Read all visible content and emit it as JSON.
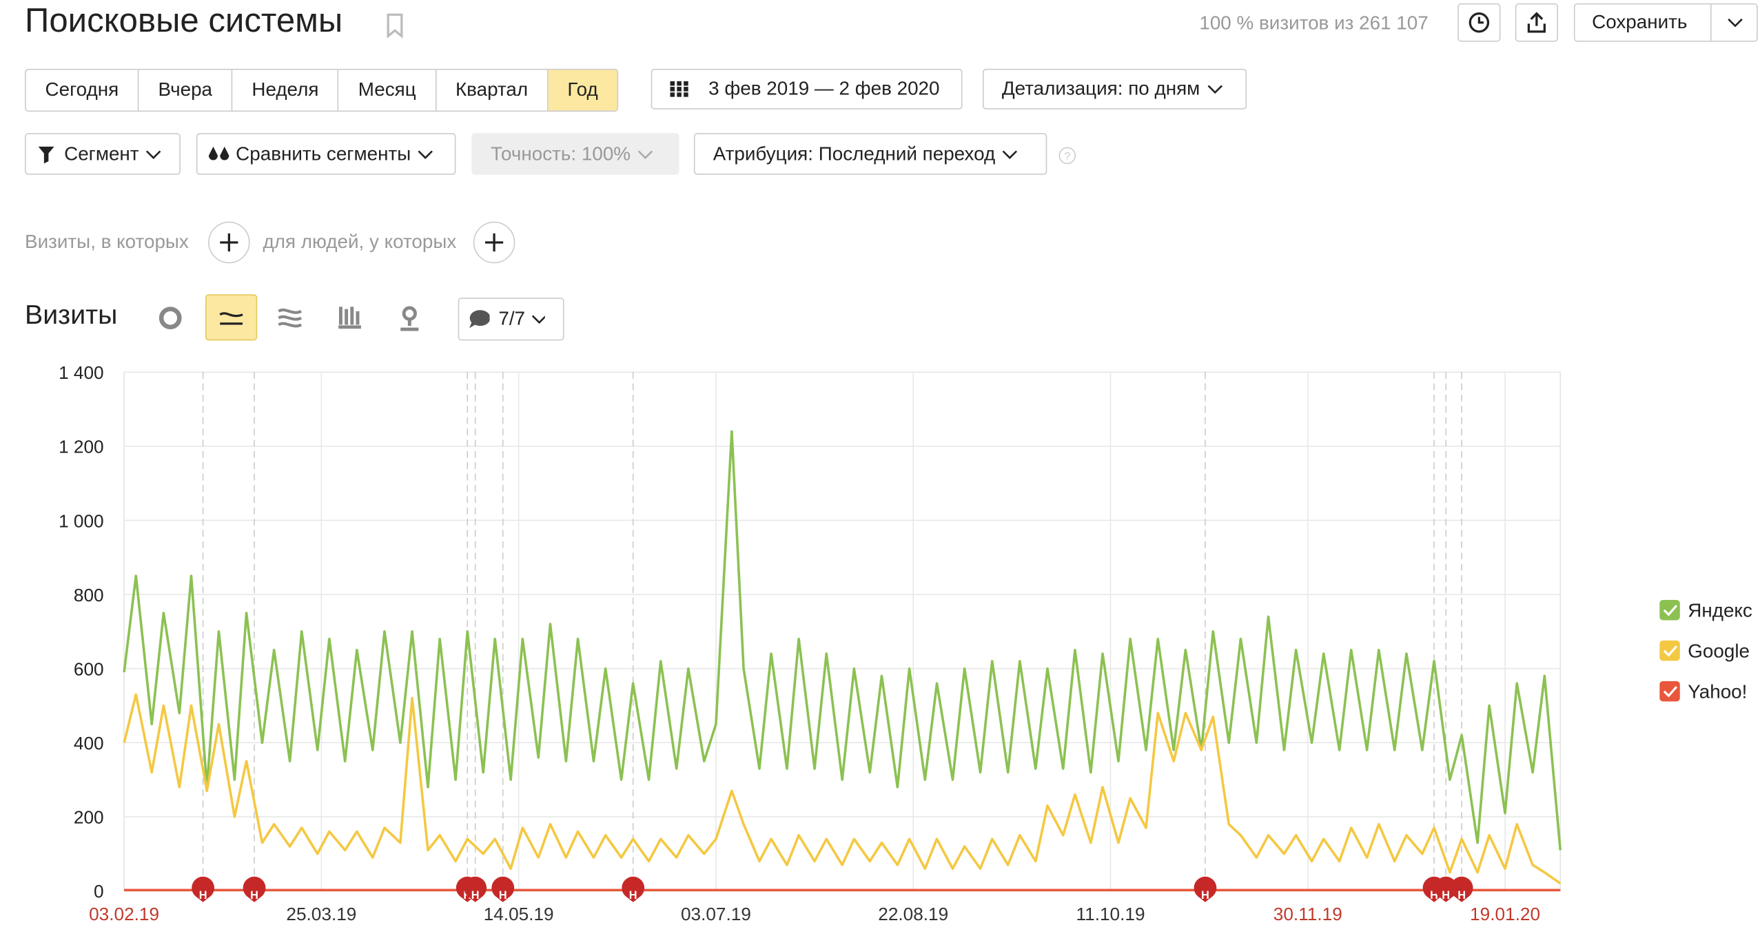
{
  "header": {
    "title": "Поисковые системы",
    "visits_info": "100 % визитов из 261 107",
    "save": "Сохранить"
  },
  "periods": [
    "Сегодня",
    "Вчера",
    "Неделя",
    "Месяц",
    "Квартал",
    "Год"
  ],
  "active_period": 5,
  "date_range": "3 фев 2019 — 2 фев 2020",
  "detail": "Детализация: по дням",
  "filters": [
    "Сегмент",
    "Сравнить сегменты",
    "Точность: 100%",
    "Атрибуция: Последний переход"
  ],
  "conditions": [
    "Визиты, в которых",
    "для людей, у которых"
  ],
  "chart_header": {
    "title": "Визиты",
    "notes_count": "7/7"
  },
  "chart_data": {
    "type": "line",
    "x": [
      "03.02.19",
      "06.02.19",
      "10.02.19",
      "13.02.19",
      "17.02.19",
      "20.02.19",
      "24.02.19",
      "27.02.19",
      "03.03.19",
      "06.03.19",
      "10.03.19",
      "13.03.19",
      "17.03.19",
      "20.03.19",
      "24.03.19",
      "27.03.19",
      "31.03.19",
      "03.04.19",
      "07.04.19",
      "10.04.19",
      "14.04.19",
      "17.04.19",
      "21.04.19",
      "24.04.19",
      "28.04.19",
      "01.05.19",
      "05.05.19",
      "08.05.19",
      "12.05.19",
      "15.05.19",
      "19.05.19",
      "22.05.19",
      "26.05.19",
      "29.05.19",
      "02.06.19",
      "05.06.19",
      "09.06.19",
      "12.06.19",
      "16.06.19",
      "19.06.19",
      "23.06.19",
      "26.06.19",
      "30.06.19",
      "03.07.19",
      "07.07.19",
      "10.07.19",
      "14.07.19",
      "17.07.19",
      "21.07.19",
      "24.07.19",
      "28.07.19",
      "31.07.19",
      "04.08.19",
      "07.08.19",
      "11.08.19",
      "14.08.19",
      "18.08.19",
      "21.08.19",
      "25.08.19",
      "28.08.19",
      "01.09.19",
      "04.09.19",
      "08.09.19",
      "11.09.19",
      "15.09.19",
      "18.09.19",
      "22.09.19",
      "25.09.19",
      "29.09.19",
      "02.10.19",
      "06.10.19",
      "09.10.19",
      "13.10.19",
      "16.10.19",
      "20.10.19",
      "23.10.19",
      "27.10.19",
      "30.10.19",
      "03.11.19",
      "06.11.19",
      "10.11.19",
      "13.11.19",
      "17.11.19",
      "20.11.19",
      "24.11.19",
      "27.11.19",
      "01.12.19",
      "04.12.19",
      "08.12.19",
      "11.12.19",
      "15.12.19",
      "18.12.19",
      "22.12.19",
      "25.12.19",
      "29.12.19",
      "01.01.20",
      "05.01.20",
      "08.01.20",
      "12.01.20",
      "15.01.20",
      "19.01.20",
      "22.01.20",
      "26.01.20",
      "29.01.20",
      "02.02.20"
    ],
    "series": [
      {
        "name": "Яндекс",
        "color": "#8cc152",
        "values": [
          590,
          850,
          450,
          750,
          480,
          850,
          280,
          700,
          300,
          750,
          400,
          650,
          350,
          700,
          380,
          680,
          350,
          650,
          380,
          700,
          400,
          700,
          280,
          680,
          300,
          700,
          320,
          680,
          300,
          680,
          360,
          720,
          350,
          680,
          350,
          600,
          300,
          560,
          300,
          620,
          330,
          600,
          350,
          450,
          1240,
          600,
          330,
          640,
          330,
          680,
          330,
          640,
          300,
          600,
          320,
          580,
          280,
          600,
          300,
          560,
          300,
          600,
          320,
          620,
          320,
          620,
          330,
          600,
          330,
          650,
          320,
          640,
          350,
          680,
          380,
          680,
          380,
          650,
          380,
          700,
          400,
          680,
          400,
          740,
          380,
          650,
          400,
          640,
          380,
          650,
          380,
          650,
          380,
          640,
          380,
          620,
          300,
          420,
          130,
          500,
          210,
          560,
          320,
          580,
          110
        ]
      },
      {
        "name": "Google",
        "color": "#f4c842",
        "values": [
          400,
          530,
          320,
          500,
          280,
          500,
          270,
          450,
          200,
          350,
          130,
          180,
          120,
          170,
          100,
          160,
          110,
          160,
          90,
          170,
          130,
          520,
          110,
          150,
          80,
          140,
          100,
          140,
          60,
          170,
          90,
          180,
          90,
          160,
          90,
          150,
          90,
          140,
          80,
          140,
          90,
          150,
          100,
          140,
          270,
          180,
          80,
          140,
          70,
          150,
          80,
          140,
          70,
          140,
          80,
          130,
          70,
          140,
          60,
          140,
          60,
          120,
          60,
          140,
          70,
          150,
          80,
          230,
          150,
          260,
          130,
          280,
          130,
          250,
          170,
          480,
          350,
          480,
          380,
          470,
          180,
          150,
          90,
          150,
          100,
          150,
          80,
          140,
          80,
          170,
          90,
          180,
          80,
          150,
          100,
          170,
          50,
          140,
          50,
          150,
          60,
          180,
          70,
          50,
          20
        ]
      },
      {
        "name": "Yahoo!",
        "color": "#e8573c",
        "values": [
          2,
          2,
          2,
          2,
          2,
          2,
          2,
          2,
          2,
          2,
          2,
          2,
          2,
          2,
          2,
          2,
          2,
          2,
          2,
          2,
          2,
          2,
          2,
          2,
          2,
          2,
          2,
          2,
          2,
          2,
          2,
          2,
          2,
          2,
          2,
          2,
          2,
          2,
          2,
          2,
          2,
          2,
          2,
          2,
          2,
          2,
          2,
          2,
          2,
          2,
          2,
          2,
          2,
          2,
          2,
          2,
          2,
          2,
          2,
          2,
          2,
          2,
          2,
          2,
          2,
          2,
          2,
          2,
          2,
          2,
          2,
          2,
          2,
          2,
          2,
          2,
          2,
          2,
          2,
          2,
          2,
          2,
          2,
          2,
          2,
          2,
          2,
          2,
          2,
          2,
          2,
          2,
          2,
          2,
          2,
          2,
          2,
          2,
          2,
          2,
          2,
          2,
          2,
          2,
          2
        ]
      }
    ],
    "xlim": [
      "03.02.19",
      "02.02.20"
    ],
    "xticks": [
      "03.02.19",
      "25.03.19",
      "14.05.19",
      "03.07.19",
      "22.08.19",
      "11.10.19",
      "30.11.19",
      "19.01.20"
    ],
    "xtick_colors": [
      "#c0392b",
      "#333333",
      "#333333",
      "#333333",
      "#333333",
      "#333333",
      "#c0392b",
      "#c0392b"
    ],
    "ylim": [
      0,
      1400
    ],
    "yticks": [
      0,
      200,
      400,
      600,
      800,
      {
        "value": 1000,
        "label": "1 000"
      },
      {
        "value": 1200,
        "label": "1 200"
      },
      {
        "value": 1400,
        "label": "1 400"
      }
    ],
    "grid": true,
    "legend": "right",
    "annotation_label": "Н",
    "annotations": [
      "23.02.19",
      "08.03.19",
      "01.05.19",
      "03.05.19",
      "10.05.19",
      "12.06.19",
      "04.11.19",
      "01.01.20",
      "04.01.20",
      "08.01.20"
    ]
  }
}
